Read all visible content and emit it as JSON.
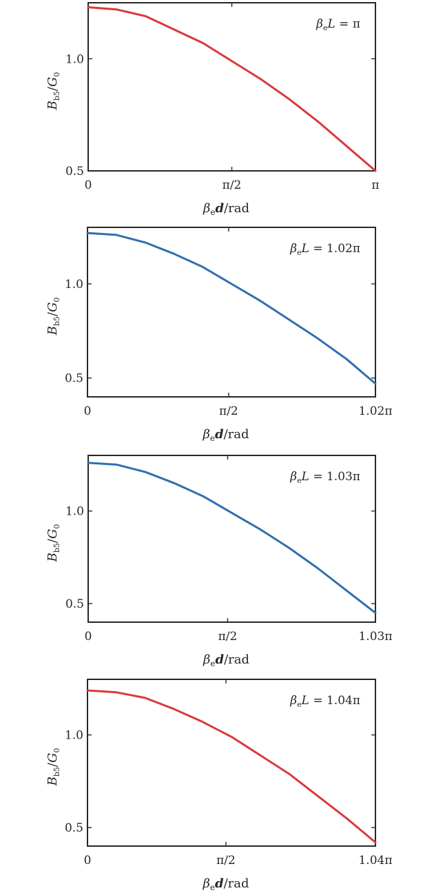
{
  "chart_data": [
    {
      "type": "line",
      "annotation": {
        "symbol": "β",
        "sub": "e",
        "var": "L",
        "rest": " = π"
      },
      "xlabel": {
        "symbol": "β",
        "sub": "e",
        "var": "d",
        "rest": "/rad"
      },
      "ylabel": {
        "var": "B",
        "sub": "b5",
        "rest": "/",
        "var2": "G",
        "sub2": "0"
      },
      "xlim_pi": [
        0,
        1.0
      ],
      "ylim": [
        0.5,
        1.25
      ],
      "xticks": [
        {
          "value_pi": 0,
          "label": "0"
        },
        {
          "value_pi": 0.5,
          "label": "π/2"
        },
        {
          "value_pi": 1.0,
          "label": "π"
        }
      ],
      "yticks": [
        {
          "value": 0.5,
          "label": "0.5"
        },
        {
          "value": 1.0,
          "label": "1.0"
        }
      ],
      "series": [
        {
          "color": "#d9393b",
          "x_pi": [
            0,
            0.1,
            0.2,
            0.3,
            0.4,
            0.5,
            0.6,
            0.7,
            0.8,
            0.9,
            1.0
          ],
          "y": [
            1.23,
            1.22,
            1.19,
            1.13,
            1.07,
            0.99,
            0.91,
            0.82,
            0.72,
            0.61,
            0.5
          ]
        }
      ]
    },
    {
      "type": "line",
      "annotation": {
        "symbol": "β",
        "sub": "e",
        "var": "L",
        "rest": " = 1.02π"
      },
      "xlabel": {
        "symbol": "β",
        "sub": "e",
        "var": "d",
        "rest": "/rad"
      },
      "ylabel": {
        "var": "B",
        "sub": "b5",
        "rest": "/",
        "var2": "G",
        "sub2": "0"
      },
      "xlim_pi": [
        0,
        1.02
      ],
      "ylim": [
        0.4,
        1.3
      ],
      "xticks": [
        {
          "value_pi": 0,
          "label": "0"
        },
        {
          "value_pi": 0.5,
          "label": "π/2"
        },
        {
          "value_pi": 1.02,
          "label": "1.02π"
        }
      ],
      "yticks": [
        {
          "value": 0.5,
          "label": "0.5"
        },
        {
          "value": 1.0,
          "label": "1.0"
        }
      ],
      "series": [
        {
          "color": "#2f6fae",
          "x_pi": [
            0,
            0.102,
            0.204,
            0.306,
            0.408,
            0.51,
            0.612,
            0.714,
            0.816,
            0.918,
            1.02
          ],
          "y": [
            1.27,
            1.26,
            1.22,
            1.16,
            1.09,
            1.0,
            0.91,
            0.81,
            0.71,
            0.6,
            0.47
          ]
        }
      ]
    },
    {
      "type": "line",
      "annotation": {
        "symbol": "β",
        "sub": "e",
        "var": "L",
        "rest": " = 1.03π"
      },
      "xlabel": {
        "symbol": "β",
        "sub": "e",
        "var": "d",
        "rest": "/rad"
      },
      "ylabel": {
        "var": "B",
        "sub": "b5",
        "rest": "/",
        "var2": "G",
        "sub2": "0"
      },
      "xlim_pi": [
        0,
        1.03
      ],
      "ylim": [
        0.4,
        1.3
      ],
      "xticks": [
        {
          "value_pi": 0,
          "label": "0"
        },
        {
          "value_pi": 0.5,
          "label": "π/2"
        },
        {
          "value_pi": 1.03,
          "label": "1.03π"
        }
      ],
      "yticks": [
        {
          "value": 0.5,
          "label": "0.5"
        },
        {
          "value": 1.0,
          "label": "1.0"
        }
      ],
      "series": [
        {
          "color": "#2f6fae",
          "x_pi": [
            0,
            0.103,
            0.206,
            0.309,
            0.412,
            0.515,
            0.618,
            0.721,
            0.824,
            0.927,
            1.03
          ],
          "y": [
            1.26,
            1.25,
            1.21,
            1.15,
            1.08,
            0.99,
            0.9,
            0.8,
            0.69,
            0.57,
            0.45
          ]
        }
      ]
    },
    {
      "type": "line",
      "annotation": {
        "symbol": "β",
        "sub": "e",
        "var": "L",
        "rest": " = 1.04π"
      },
      "xlabel": {
        "symbol": "β",
        "sub": "e",
        "var": "d",
        "rest": "/rad"
      },
      "ylabel": {
        "var": "B",
        "sub": "b5",
        "rest": "/",
        "var2": "G",
        "sub2": "0"
      },
      "xlim_pi": [
        0,
        1.04
      ],
      "ylim": [
        0.4,
        1.3
      ],
      "xticks": [
        {
          "value_pi": 0,
          "label": "0"
        },
        {
          "value_pi": 0.5,
          "label": "π/2"
        },
        {
          "value_pi": 1.04,
          "label": "1.04π"
        }
      ],
      "yticks": [
        {
          "value": 0.5,
          "label": "0.5"
        },
        {
          "value": 1.0,
          "label": "1.0"
        }
      ],
      "series": [
        {
          "color": "#d9393b",
          "x_pi": [
            0,
            0.104,
            0.208,
            0.312,
            0.416,
            0.52,
            0.624,
            0.728,
            0.832,
            0.936,
            1.04
          ],
          "y": [
            1.24,
            1.23,
            1.2,
            1.14,
            1.07,
            0.99,
            0.89,
            0.79,
            0.67,
            0.55,
            0.42
          ]
        }
      ]
    }
  ]
}
